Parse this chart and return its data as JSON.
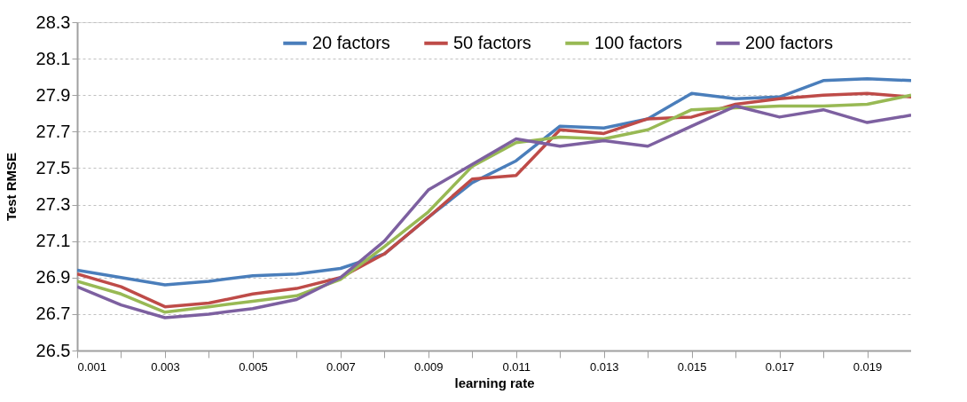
{
  "chart_data": {
    "type": "line",
    "xlabel": "learning rate",
    "ylabel": "Test RMSE",
    "x": [
      0.001,
      0.002,
      0.003,
      0.004,
      0.005,
      0.006,
      0.007,
      0.008,
      0.009,
      0.01,
      0.011,
      0.012,
      0.013,
      0.014,
      0.015,
      0.016,
      0.017,
      0.018,
      0.019,
      0.02
    ],
    "series": [
      {
        "name": "20 factors",
        "color": "#4a7ebb",
        "values": [
          26.94,
          26.9,
          26.86,
          26.88,
          26.91,
          26.92,
          26.95,
          27.03,
          27.23,
          27.42,
          27.54,
          27.73,
          27.72,
          27.77,
          27.91,
          27.88,
          27.89,
          27.98,
          27.99,
          27.98
        ]
      },
      {
        "name": "50 factors",
        "color": "#be4b48",
        "values": [
          26.92,
          26.85,
          26.74,
          26.76,
          26.81,
          26.84,
          26.9,
          27.03,
          27.23,
          27.44,
          27.46,
          27.71,
          27.69,
          27.77,
          27.78,
          27.85,
          27.88,
          27.9,
          27.91,
          27.89
        ]
      },
      {
        "name": "100 factors",
        "color": "#98b954",
        "values": [
          26.88,
          26.81,
          26.71,
          26.74,
          26.77,
          26.8,
          26.89,
          27.07,
          27.26,
          27.51,
          27.64,
          27.67,
          27.66,
          27.71,
          27.82,
          27.83,
          27.84,
          27.84,
          27.85,
          27.9
        ]
      },
      {
        "name": "200 factors",
        "color": "#7d60a0",
        "values": [
          26.85,
          26.75,
          26.68,
          26.7,
          26.73,
          26.78,
          26.9,
          27.1,
          27.38,
          27.52,
          27.66,
          27.62,
          27.65,
          27.62,
          27.73,
          27.84,
          27.78,
          27.82,
          27.75,
          27.79
        ]
      }
    ],
    "xlim": [
      0.001,
      0.02
    ],
    "xticks": [
      {
        "value": 0.001,
        "label": "0.001"
      },
      {
        "value": 0.002,
        "label": null
      },
      {
        "value": 0.003,
        "label": "0.003"
      },
      {
        "value": 0.004,
        "label": null
      },
      {
        "value": 0.005,
        "label": "0.005"
      },
      {
        "value": 0.006,
        "label": null
      },
      {
        "value": 0.007,
        "label": "0.007"
      },
      {
        "value": 0.008,
        "label": null
      },
      {
        "value": 0.009,
        "label": "0.009"
      },
      {
        "value": 0.01,
        "label": null
      },
      {
        "value": 0.011,
        "label": "0.011"
      },
      {
        "value": 0.012,
        "label": null
      },
      {
        "value": 0.013,
        "label": "0.013"
      },
      {
        "value": 0.014,
        "label": null
      },
      {
        "value": 0.015,
        "label": "0.015"
      },
      {
        "value": 0.016,
        "label": null
      },
      {
        "value": 0.017,
        "label": "0.017"
      },
      {
        "value": 0.018,
        "label": null
      },
      {
        "value": 0.019,
        "label": "0.019"
      }
    ],
    "ylim": [
      26.5,
      28.3
    ],
    "yticks": [
      {
        "value": 26.5,
        "label": "26.5"
      },
      {
        "value": 26.7,
        "label": "26.7"
      },
      {
        "value": 26.9,
        "label": "26.9"
      },
      {
        "value": 27.1,
        "label": "27.1"
      },
      {
        "value": 27.3,
        "label": "27.3"
      },
      {
        "value": 27.5,
        "label": "27.5"
      },
      {
        "value": 27.7,
        "label": "27.7"
      },
      {
        "value": 27.9,
        "label": "27.9"
      },
      {
        "value": 28.1,
        "label": "28.1"
      },
      {
        "value": 28.3,
        "label": "28.3"
      }
    ],
    "grid": "y",
    "legend": "top",
    "marker": "none",
    "line_style": "solid"
  }
}
